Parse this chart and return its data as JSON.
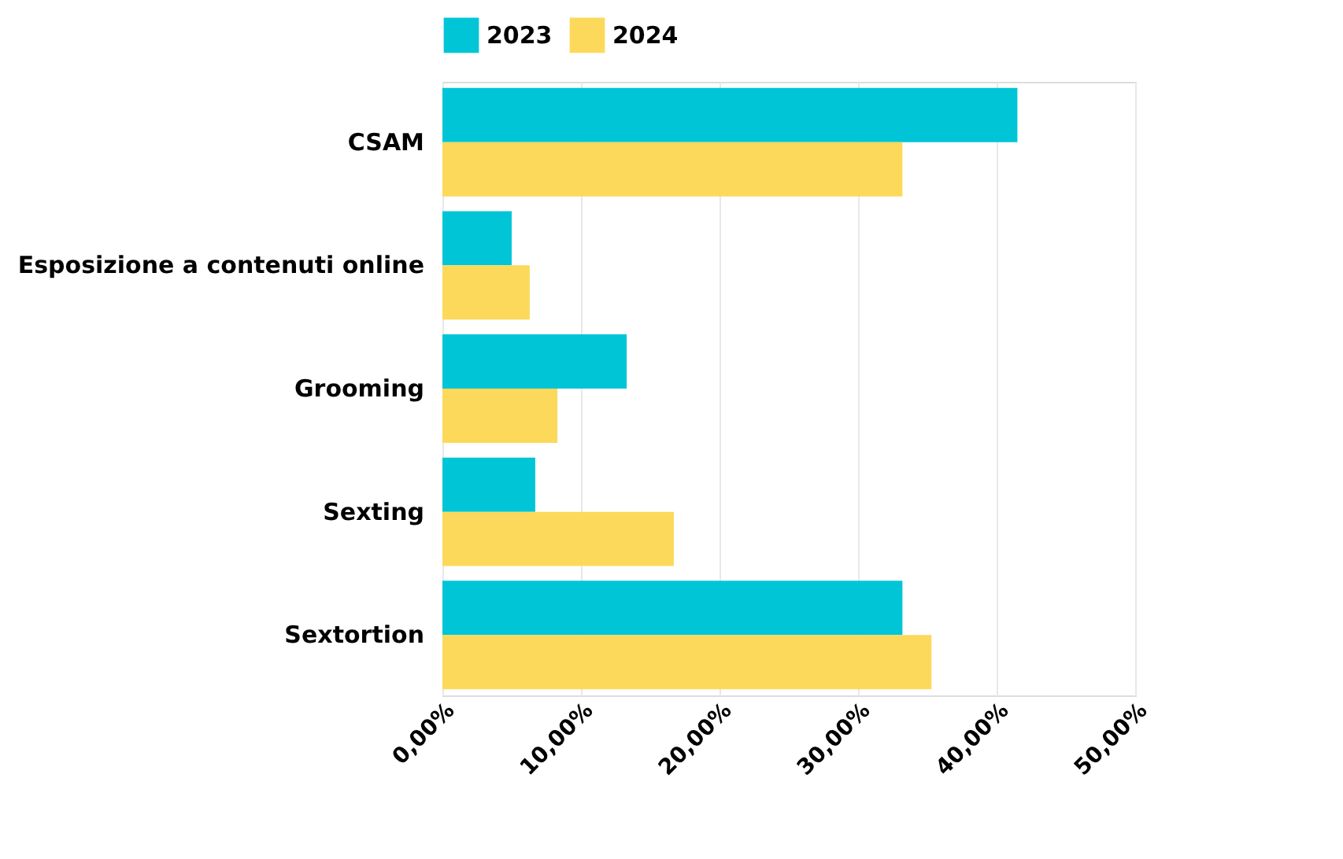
{
  "chart_data": {
    "type": "bar",
    "orientation": "horizontal",
    "categories": [
      "CSAM",
      "Esposizione a contenuti online",
      "Grooming",
      "Sexting",
      "Sextortion"
    ],
    "series": [
      {
        "name": "2023",
        "color": "#00c5d7",
        "values": [
          41.5,
          5.0,
          13.3,
          6.7,
          33.2
        ]
      },
      {
        "name": "2024",
        "color": "#fcd95a",
        "values": [
          33.2,
          6.3,
          8.3,
          16.7,
          35.3
        ]
      }
    ],
    "xlim": [
      0,
      50
    ],
    "xticks": [
      {
        "value": 0,
        "label": "0,00%"
      },
      {
        "value": 10,
        "label": "10,00%"
      },
      {
        "value": 20,
        "label": "20,00%"
      },
      {
        "value": 30,
        "label": "30,00%"
      },
      {
        "value": 40,
        "label": "40,00%"
      },
      {
        "value": 50,
        "label": "50,00%"
      }
    ],
    "grid": "x",
    "legend": "top"
  }
}
